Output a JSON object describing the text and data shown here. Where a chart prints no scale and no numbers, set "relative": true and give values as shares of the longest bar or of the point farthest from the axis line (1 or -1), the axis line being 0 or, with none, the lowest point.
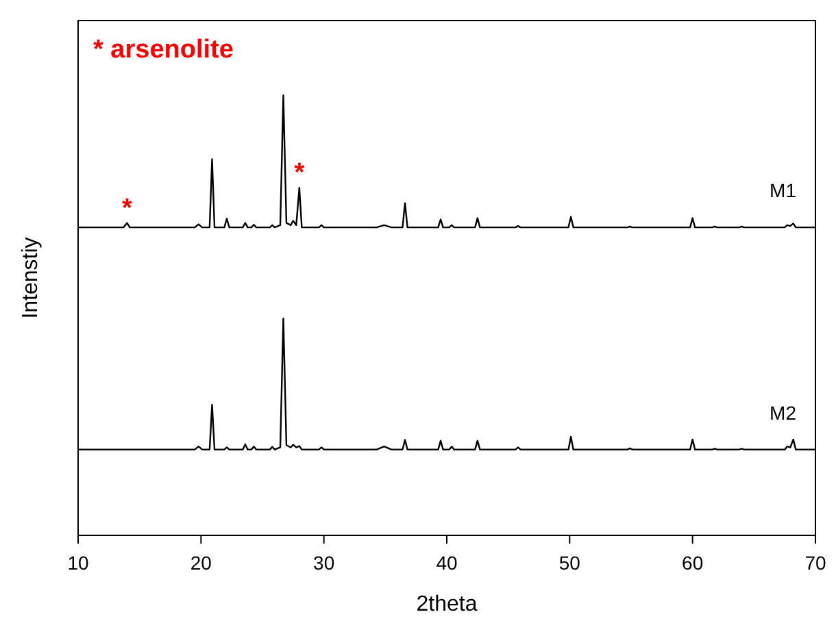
{
  "chart_data": {
    "type": "line",
    "relative": true,
    "xlabel": "2theta",
    "ylabel": "Intenstiy",
    "xlim": [
      10,
      70
    ],
    "xticks": [
      10,
      20,
      30,
      40,
      50,
      60,
      70
    ],
    "grid": false,
    "line_style": "solid",
    "x": [
      10,
      13.7,
      13.98,
      14.2,
      19.5,
      19.8,
      20.1,
      20.7,
      20.9,
      21.1,
      21.9,
      22.1,
      22.3,
      23.4,
      23.6,
      23.8,
      24.1,
      24.3,
      24.5,
      25.6,
      25.8,
      26.0,
      26.45,
      26.7,
      26.95,
      27.3,
      27.5,
      27.75,
      28.0,
      28.2,
      29.6,
      29.8,
      30.0,
      34.3,
      34.9,
      35.5,
      36.4,
      36.6,
      36.8,
      39.3,
      39.5,
      39.7,
      40.2,
      40.4,
      40.6,
      42.3,
      42.5,
      42.7,
      45.6,
      45.8,
      46.0,
      49.9,
      50.1,
      50.3,
      54.7,
      54.9,
      55.1,
      59.8,
      60.0,
      60.2,
      61.6,
      61.8,
      62.0,
      63.8,
      64.0,
      64.2,
      67.5,
      67.7,
      67.95,
      68.2,
      68.4,
      70
    ],
    "series": [
      {
        "name": "M1",
        "color": "#000000",
        "values": [
          0.7,
          0.7,
          0.71,
          0.7,
          0.7,
          0.707,
          0.7,
          0.7,
          0.855,
          0.7,
          0.7,
          0.72,
          0.7,
          0.7,
          0.71,
          0.7,
          0.7,
          0.706,
          0.7,
          0.7,
          0.705,
          0.7,
          0.705,
          1,
          0.71,
          0.705,
          0.715,
          0.705,
          0.79,
          0.7,
          0.7,
          0.705,
          0.7,
          0.7,
          0.705,
          0.7,
          0.7,
          0.755,
          0.7,
          0.7,
          0.718,
          0.7,
          0.7,
          0.705,
          0.7,
          0.7,
          0.721,
          0.7,
          0.7,
          0.703,
          0.7,
          0.7,
          0.724,
          0.7,
          0.7,
          0.702,
          0.7,
          0.7,
          0.721,
          0.7,
          0.7,
          0.702,
          0.7,
          0.7,
          0.702,
          0.7,
          0.7,
          0.705,
          0.703,
          0.709,
          0.7,
          0.7
        ]
      },
      {
        "name": "M2",
        "color": "#000000",
        "values": [
          0.195,
          0.195,
          0.195,
          0.195,
          0.195,
          0.202,
          0.195,
          0.195,
          0.297,
          0.195,
          0.195,
          0.2,
          0.195,
          0.195,
          0.207,
          0.195,
          0.195,
          0.202,
          0.195,
          0.195,
          0.201,
          0.195,
          0.2,
          0.493,
          0.205,
          0.2,
          0.206,
          0.2,
          0.203,
          0.195,
          0.195,
          0.2,
          0.195,
          0.195,
          0.202,
          0.195,
          0.195,
          0.217,
          0.195,
          0.195,
          0.215,
          0.195,
          0.195,
          0.202,
          0.195,
          0.195,
          0.215,
          0.195,
          0.195,
          0.2,
          0.195,
          0.195,
          0.224,
          0.195,
          0.195,
          0.198,
          0.195,
          0.195,
          0.218,
          0.195,
          0.195,
          0.197,
          0.195,
          0.195,
          0.197,
          0.195,
          0.195,
          0.202,
          0.2,
          0.218,
          0.195,
          0.195
        ]
      }
    ],
    "annotations": [
      "* arsenolite",
      {
        "text": "*",
        "x": 13.98,
        "y": 0.71
      },
      {
        "text": "*",
        "x": 28.0,
        "y": 0.79
      }
    ]
  }
}
